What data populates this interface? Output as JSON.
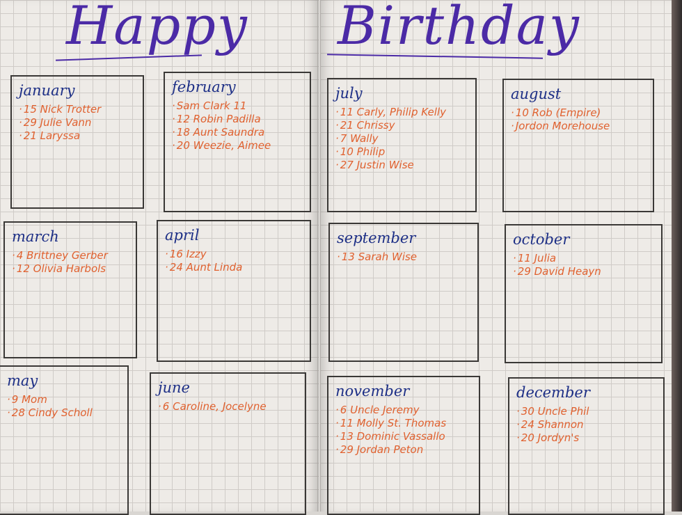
{
  "title": {
    "left": "Happy",
    "right": "Birthday"
  },
  "colors": {
    "month_ink": "#1d2f86",
    "name_ink": "#e0612f",
    "title_ink": "#4b2aa6",
    "grid": "#cfcbc7",
    "paper": "#eeebe7"
  },
  "months": [
    {
      "id": "january",
      "name": "january",
      "entries": [
        "15 Nick Trotter",
        "29 Julie Vann",
        "21 Laryssa"
      ]
    },
    {
      "id": "february",
      "name": "february",
      "entries": [
        "Sam Clark 11",
        "12 Robin Padilla",
        "18 Aunt Saundra",
        "20 Weezie, Aimee"
      ]
    },
    {
      "id": "march",
      "name": "march",
      "entries": [
        "4 Brittney Gerber",
        "12 Olivia Harbols"
      ]
    },
    {
      "id": "april",
      "name": "april",
      "entries": [
        "16 Izzy",
        "24 Aunt Linda"
      ]
    },
    {
      "id": "may",
      "name": "may",
      "entries": [
        "9 Mom",
        "28 Cindy Scholl"
      ]
    },
    {
      "id": "june",
      "name": "june",
      "entries": [
        "6 Caroline, Jocelyne"
      ]
    },
    {
      "id": "july",
      "name": "july",
      "entries": [
        "11 Carly, Philip Kelly",
        "21 Chrissy",
        "7 Wally",
        "10 Philip",
        "27 Justin Wise"
      ]
    },
    {
      "id": "august",
      "name": "august",
      "entries": [
        "10 Rob (Empire)",
        "Jordon Morehouse"
      ]
    },
    {
      "id": "september",
      "name": "september",
      "entries": [
        "13 Sarah Wise"
      ]
    },
    {
      "id": "october",
      "name": "october",
      "entries": [
        "11 Julia",
        "29 David Heayn"
      ]
    },
    {
      "id": "november",
      "name": "november",
      "entries": [
        "6 Uncle Jeremy",
        "11 Molly St. Thomas",
        "13 Dominic Vassallo",
        "29 Jordan Peton"
      ]
    },
    {
      "id": "december",
      "name": "december",
      "entries": [
        "30 Uncle Phil",
        "24 Shannon",
        "20 Jordyn's"
      ]
    }
  ]
}
